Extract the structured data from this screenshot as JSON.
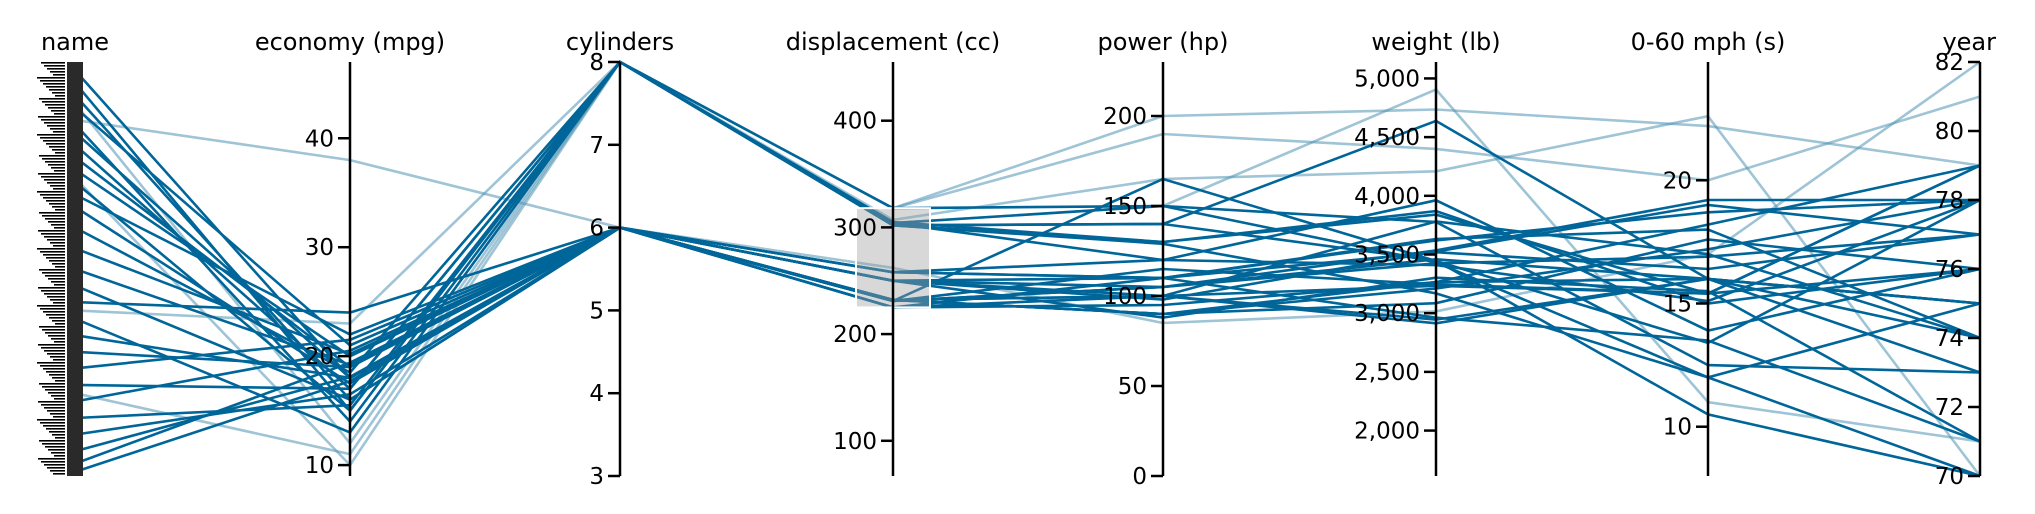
{
  "colors": {
    "highlight": "#006699",
    "context": "#4f93b5",
    "brush": "#9e9e9e",
    "axis": "#000000"
  },
  "chart_data": {
    "type": "parallel-coordinates",
    "dataset_hint": "cars",
    "axes": [
      {
        "key": "name",
        "title": "name",
        "type": "categorical",
        "ticks": []
      },
      {
        "key": "economy",
        "title": "economy (mpg)",
        "domain": [
          9,
          47
        ],
        "ticks": [
          10,
          20,
          30,
          40
        ],
        "tick_labels": [
          "10",
          "20",
          "30",
          "40"
        ]
      },
      {
        "key": "cylinders",
        "title": "cylinders",
        "domain": [
          3,
          8
        ],
        "ticks": [
          3,
          4,
          5,
          6,
          7,
          8
        ],
        "tick_labels": [
          "3",
          "4",
          "5",
          "6",
          "7",
          "8"
        ]
      },
      {
        "key": "displacement",
        "title": "displacement (cc)",
        "domain": [
          67,
          455
        ],
        "ticks": [
          100,
          200,
          300,
          400
        ],
        "tick_labels": [
          "100",
          "200",
          "300",
          "400"
        ]
      },
      {
        "key": "power",
        "title": "power (hp)",
        "domain": [
          0,
          230
        ],
        "ticks": [
          0,
          50,
          100,
          150,
          200
        ],
        "tick_labels": [
          "0",
          "50",
          "100",
          "150",
          "200"
        ]
      },
      {
        "key": "weight",
        "title": "weight (lb)",
        "domain": [
          1613,
          5140
        ],
        "ticks": [
          2000,
          2500,
          3000,
          3500,
          4000,
          4500,
          5000
        ],
        "tick_labels": [
          "2,000",
          "2,500",
          "3,000",
          "3,500",
          "4,000",
          "4,500",
          "5,000"
        ]
      },
      {
        "key": "accel",
        "title": "0-60 mph (s)",
        "domain": [
          8,
          24.8
        ],
        "ticks": [
          10,
          15,
          20
        ],
        "tick_labels": [
          "10",
          "15",
          "20"
        ]
      },
      {
        "key": "year",
        "title": "year",
        "domain": [
          70,
          82
        ],
        "ticks": [
          70,
          72,
          74,
          76,
          78,
          80,
          82
        ],
        "tick_labels": [
          "70",
          "72",
          "74",
          "76",
          "78",
          "80",
          "82"
        ]
      }
    ],
    "brush": {
      "axis": "displacement",
      "range": [
        225,
        318
      ]
    },
    "highlighted_rows": [
      {
        "name": 0.98,
        "economy": 18,
        "cylinders": 6,
        "displacement": 250,
        "power": 105,
        "weight": 3459,
        "accel": 16.0,
        "year": 75
      },
      {
        "name": 0.95,
        "economy": 15,
        "cylinders": 8,
        "displacement": 304,
        "power": 150,
        "weight": 3433,
        "accel": 12.0,
        "year": 70
      },
      {
        "name": 0.92,
        "economy": 16,
        "cylinders": 6,
        "displacement": 250,
        "power": 100,
        "weight": 3781,
        "accel": 17.0,
        "year": 74
      },
      {
        "name": 0.89,
        "economy": 21,
        "cylinders": 6,
        "displacement": 232,
        "power": 90,
        "weight": 3085,
        "accel": 17.6,
        "year": 76
      },
      {
        "name": 0.85,
        "economy": 14,
        "cylinders": 8,
        "displacement": 302,
        "power": 140,
        "weight": 4638,
        "accel": 16.0,
        "year": 74
      },
      {
        "name": 0.83,
        "economy": 18,
        "cylinders": 6,
        "displacement": 258,
        "power": 110,
        "weight": 2962,
        "accel": 13.5,
        "year": 71
      },
      {
        "name": 0.8,
        "economy": 17,
        "cylinders": 8,
        "displacement": 302,
        "power": 140,
        "weight": 3449,
        "accel": 10.5,
        "year": 70
      },
      {
        "name": 0.77,
        "economy": 19,
        "cylinders": 6,
        "displacement": 225,
        "power": 95,
        "weight": 3264,
        "accel": 16.0,
        "year": 75
      },
      {
        "name": 0.74,
        "economy": 20,
        "cylinders": 6,
        "displacement": 232,
        "power": 100,
        "weight": 2914,
        "accel": 16.0,
        "year": 75
      },
      {
        "name": 0.71,
        "economy": 15,
        "cylinders": 8,
        "displacement": 318,
        "power": 150,
        "weight": 3777,
        "accel": 12.5,
        "year": 73
      },
      {
        "name": 0.68,
        "economy": 22,
        "cylinders": 6,
        "displacement": 225,
        "power": 100,
        "weight": 3233,
        "accel": 15.4,
        "year": 76
      },
      {
        "name": 0.65,
        "economy": 17.5,
        "cylinders": 6,
        "displacement": 250,
        "power": 110,
        "weight": 3520,
        "accel": 16.4,
        "year": 77
      },
      {
        "name": 0.6,
        "economy": 18.5,
        "cylinders": 8,
        "displacement": 302,
        "power": 130,
        "weight": 3870,
        "accel": 15.0,
        "year": 76
      },
      {
        "name": 0.55,
        "economy": 20.2,
        "cylinders": 6,
        "displacement": 232,
        "power": 90,
        "weight": 3265,
        "accel": 18.2,
        "year": 79
      },
      {
        "name": 0.5,
        "economy": 19.2,
        "cylinders": 6,
        "displacement": 231,
        "power": 105,
        "weight": 3535,
        "accel": 19.2,
        "year": 78
      },
      {
        "name": 0.46,
        "economy": 16,
        "cylinders": 6,
        "displacement": 258,
        "power": 110,
        "weight": 3632,
        "accel": 18.0,
        "year": 74
      },
      {
        "name": 0.42,
        "economy": 24,
        "cylinders": 6,
        "displacement": 225,
        "power": 110,
        "weight": 3620,
        "accel": 18.7,
        "year": 78
      },
      {
        "name": 0.38,
        "economy": 13,
        "cylinders": 8,
        "displacement": 302,
        "power": 129,
        "weight": 3169,
        "accel": 12.0,
        "year": 75
      },
      {
        "name": 0.34,
        "economy": 18,
        "cylinders": 6,
        "displacement": 232,
        "power": 100,
        "weight": 2945,
        "accel": 16.0,
        "year": 73
      },
      {
        "name": 0.3,
        "economy": 19,
        "cylinders": 6,
        "displacement": 250,
        "power": 88,
        "weight": 3302,
        "accel": 15.5,
        "year": 71
      },
      {
        "name": 0.26,
        "economy": 21.5,
        "cylinders": 6,
        "displacement": 231,
        "power": 115,
        "weight": 3245,
        "accel": 15.4,
        "year": 79
      },
      {
        "name": 0.22,
        "economy": 17,
        "cylinders": 8,
        "displacement": 305,
        "power": 130,
        "weight": 3840,
        "accel": 15.4,
        "year": 79
      },
      {
        "name": 0.18,
        "economy": 20.5,
        "cylinders": 6,
        "displacement": 231,
        "power": 105,
        "weight": 3425,
        "accel": 16.9,
        "year": 77
      },
      {
        "name": 0.14,
        "economy": 15.5,
        "cylinders": 8,
        "displacement": 304,
        "power": 120,
        "weight": 3962,
        "accel": 13.9,
        "year": 76
      },
      {
        "name": 0.1,
        "economy": 16.5,
        "cylinders": 6,
        "displacement": 250,
        "power": 98,
        "weight": 3525,
        "accel": 19.0,
        "year": 77
      },
      {
        "name": 0.06,
        "economy": 18.1,
        "cylinders": 6,
        "displacement": 258,
        "power": 120,
        "weight": 3410,
        "accel": 15.1,
        "year": 78
      },
      {
        "name": 0.03,
        "economy": 19.4,
        "cylinders": 6,
        "displacement": 232,
        "power": 90,
        "weight": 3210,
        "accel": 17.2,
        "year": 78
      },
      {
        "name": 0.01,
        "economy": 17.7,
        "cylinders": 6,
        "displacement": 231,
        "power": 165,
        "weight": 3445,
        "accel": 13.4,
        "year": 78
      }
    ],
    "context_rows": [
      {
        "name": 0.86,
        "economy": 38,
        "cylinders": 6,
        "displacement": 262,
        "power": 85,
        "weight": 3015,
        "accel": 17.0,
        "year": 82
      },
      {
        "name": 0.9,
        "economy": 12,
        "cylinders": 8,
        "displacement": 318,
        "power": 200,
        "weight": 4735,
        "accel": 22.2,
        "year": 79
      },
      {
        "name": 0.4,
        "economy": 23,
        "cylinders": 8,
        "displacement": 318,
        "power": 190,
        "weight": 4400,
        "accel": 20.0,
        "year": 81
      },
      {
        "name": 0.2,
        "economy": 11,
        "cylinders": 8,
        "displacement": 307,
        "power": 165,
        "weight": 4209,
        "accel": 22.6,
        "year": 70
      },
      {
        "name": 0.72,
        "economy": 10,
        "cylinders": 8,
        "displacement": 304,
        "power": 150,
        "weight": 4906,
        "accel": 11.0,
        "year": 71
      }
    ]
  }
}
